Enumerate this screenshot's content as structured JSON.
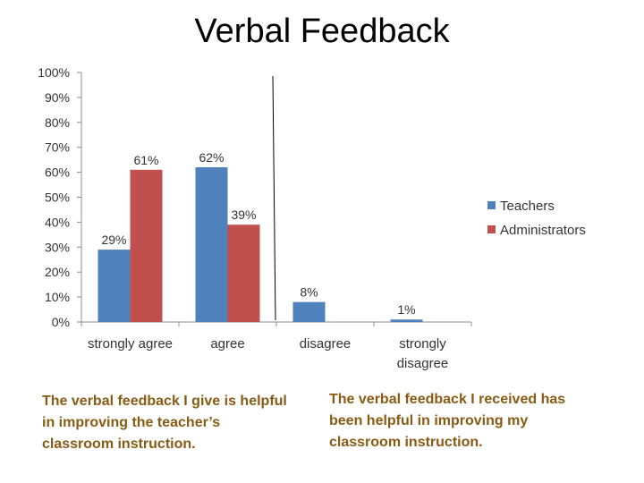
{
  "slide": {
    "title": "Verbal Feedback",
    "caption_left": "The verbal feedback I give is helpful in improving the teacher’s classroom instruction.",
    "caption_right": "The verbal feedback I received has been helpful in improving my classroom instruction."
  },
  "chart_data": {
    "type": "bar",
    "categories": [
      "strongly agree",
      "agree",
      "disagree",
      "strongly disagree"
    ],
    "category_lines": [
      [
        "strongly agree"
      ],
      [
        "agree"
      ],
      [
        "disagree"
      ],
      [
        "strongly",
        "disagree"
      ]
    ],
    "series": [
      {
        "name": "Teachers",
        "color": "#4f81bd",
        "values": [
          29,
          62,
          8,
          1
        ],
        "labels": [
          "29%",
          "62%",
          "8%",
          "1%"
        ]
      },
      {
        "name": "Administrators",
        "color": "#c0504d",
        "values": [
          61,
          39,
          null,
          null
        ],
        "labels": [
          "61%",
          "39%",
          "",
          ""
        ]
      }
    ],
    "ylim": [
      0,
      100
    ],
    "yticks": [
      "0%",
      "10%",
      "20%",
      "30%",
      "40%",
      "50%",
      "60%",
      "70%",
      "80%",
      "90%",
      "100%"
    ],
    "grid": false,
    "legend_position": "right"
  }
}
